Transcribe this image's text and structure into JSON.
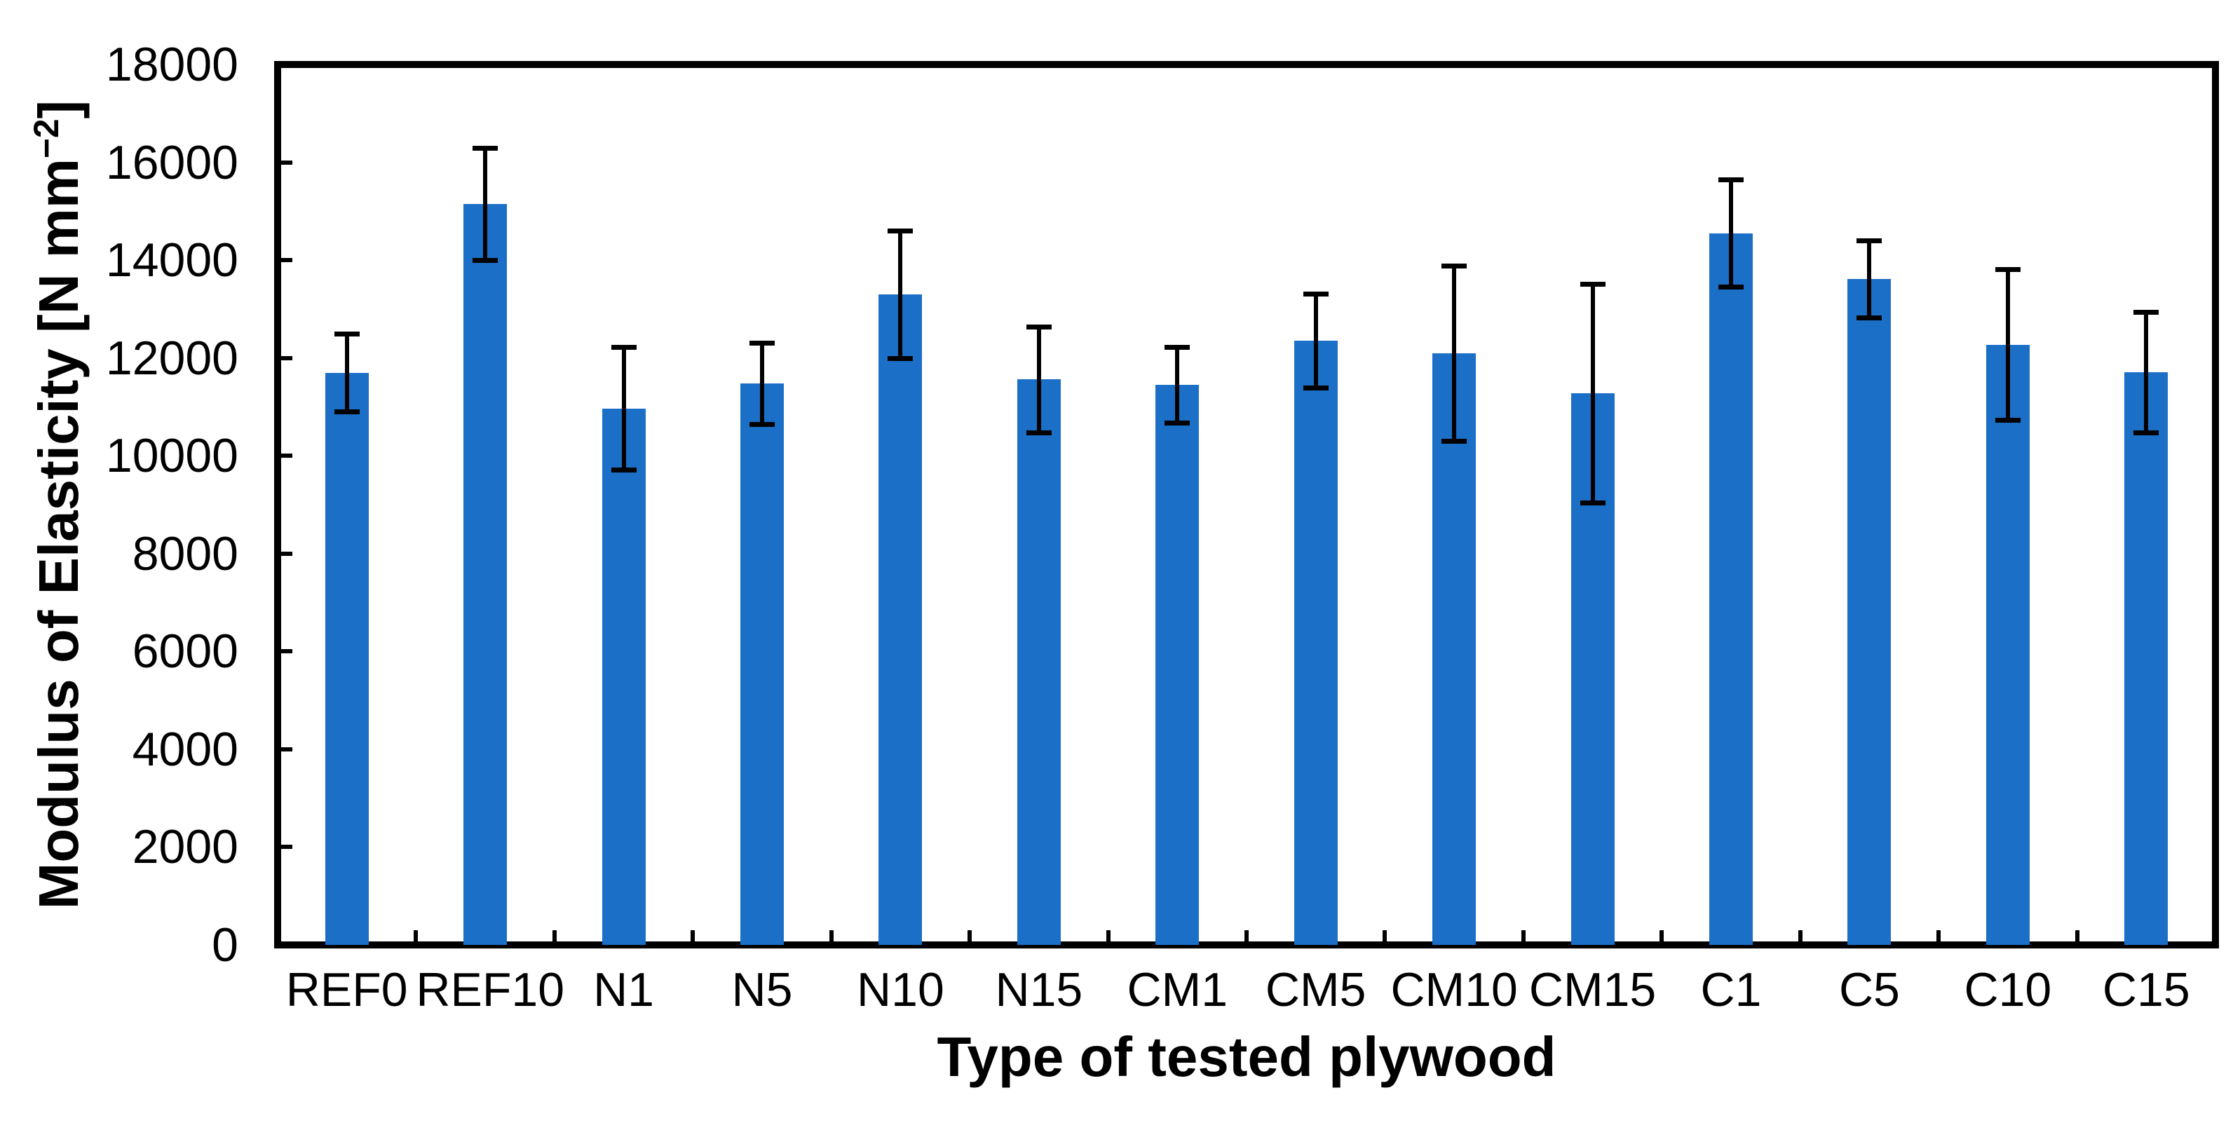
{
  "chart_data": {
    "type": "bar",
    "title": "",
    "xlabel": "Type of tested plywood",
    "ylabel": "Modulus of Elasticity [N mm⁻²]",
    "ylabel_parts": {
      "main": "Modulus of Elasticity [N mm",
      "sup": "−2",
      "close": "]"
    },
    "categories": [
      "REF0",
      "REF10",
      "N1",
      "N5",
      "N10",
      "N15",
      "CM1",
      "CM5",
      "CM10",
      "CM15",
      "C1",
      "C5",
      "C10",
      "C15"
    ],
    "series": [
      {
        "name": "Modulus of Elasticity",
        "values": [
          11700,
          15150,
          10970,
          11480,
          13300,
          11560,
          11450,
          12350,
          12100,
          11280,
          14550,
          13620,
          12270,
          11710
        ],
        "errors": [
          800,
          1150,
          1250,
          830,
          1300,
          1080,
          780,
          960,
          1790,
          2230,
          1100,
          790,
          1540,
          1230
        ]
      }
    ],
    "ylim": [
      0,
      18000
    ],
    "ytick_step": 2000,
    "yticks": [
      0,
      2000,
      4000,
      6000,
      8000,
      10000,
      12000,
      14000,
      16000,
      18000
    ],
    "grid": false,
    "legend_position": "none",
    "bar_color": "#1B6FC7",
    "error_bar_color": "#000000",
    "axis_color": "#000000",
    "background_color": "#FFFFFF"
  }
}
